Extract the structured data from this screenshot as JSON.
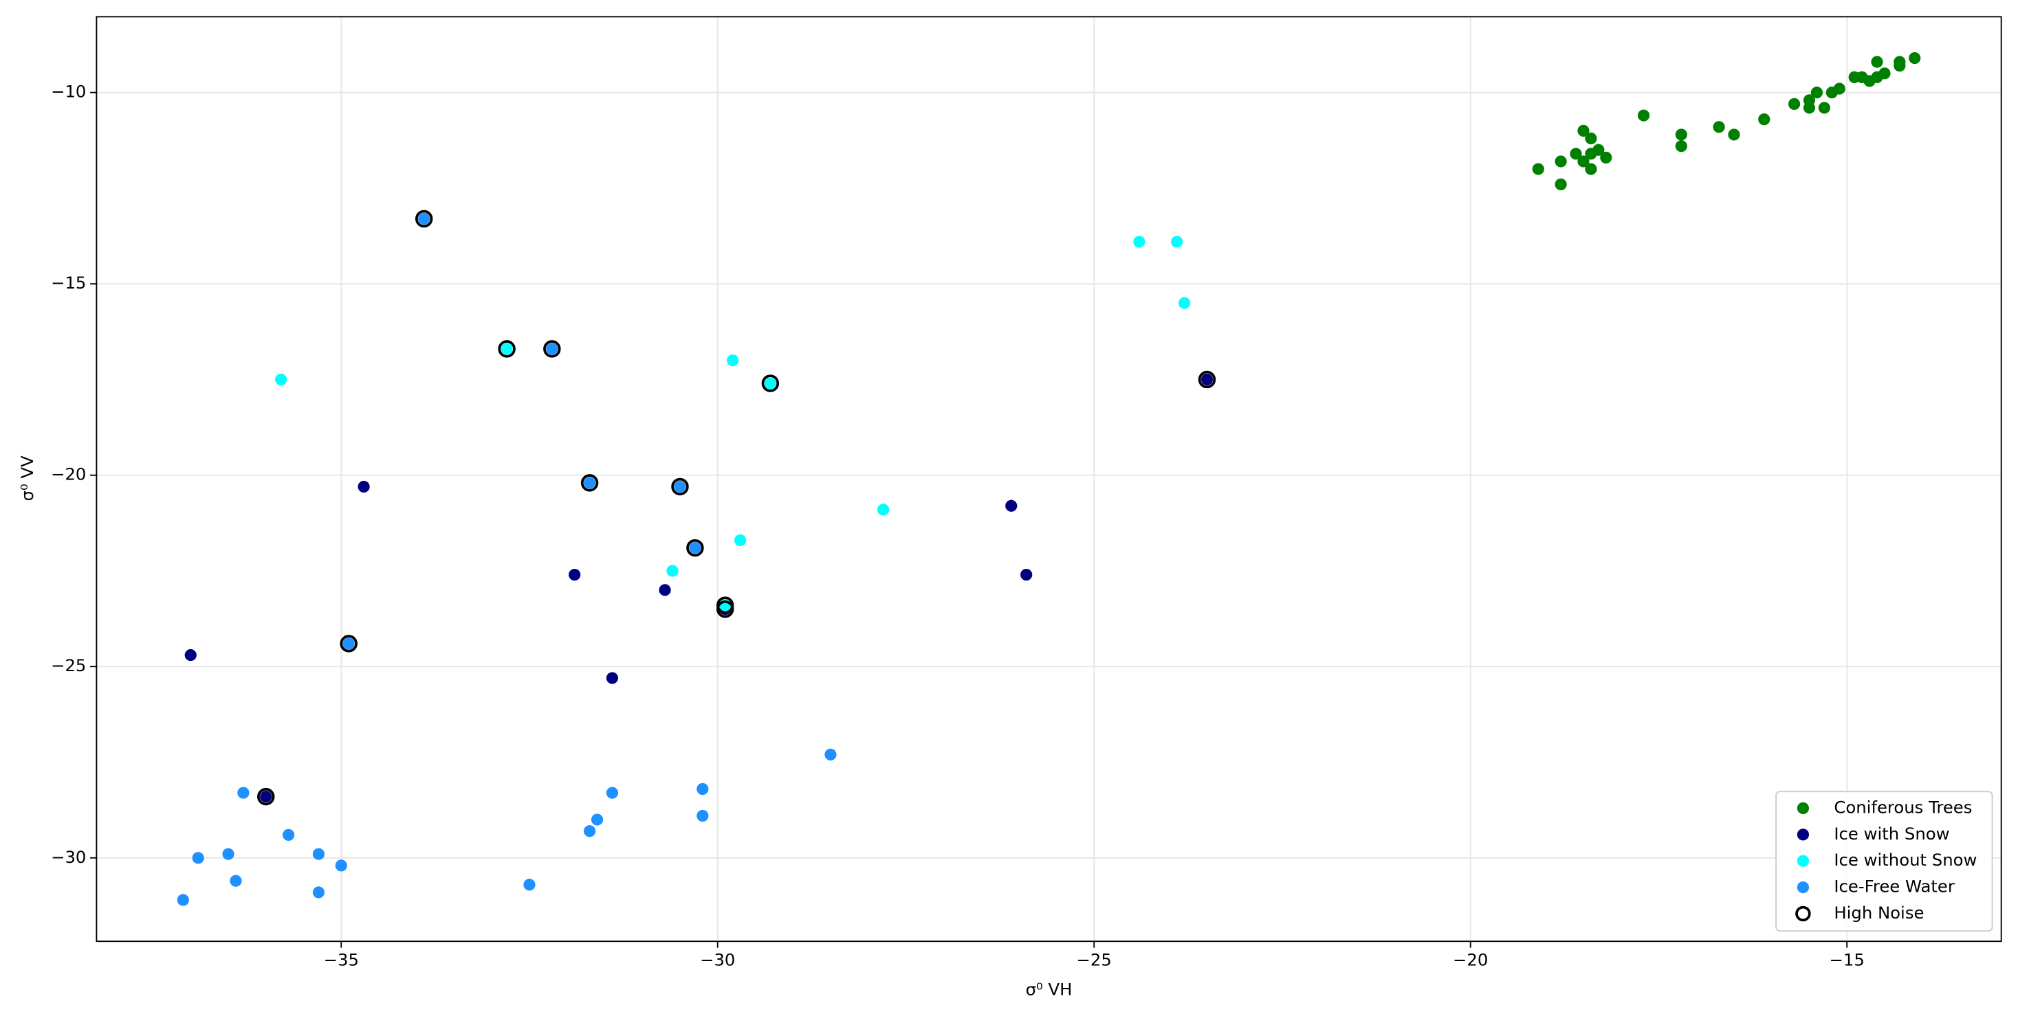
{
  "chart_data": {
    "type": "scatter",
    "x_label": "σ⁰ VH",
    "y_label": "σ⁰ VV",
    "xlim": [
      -38.25,
      -12.95
    ],
    "ylim": [
      -32.18,
      -8.02
    ],
    "xticks": [
      {
        "value": -35,
        "label": "−35"
      },
      {
        "value": -30,
        "label": "−30"
      },
      {
        "value": -25,
        "label": "−25"
      },
      {
        "value": -20,
        "label": "−20"
      },
      {
        "value": -15,
        "label": "−15"
      }
    ],
    "yticks": [
      {
        "value": -10,
        "label": "−10"
      },
      {
        "value": -15,
        "label": "−15"
      },
      {
        "value": -20,
        "label": "−20"
      },
      {
        "value": -25,
        "label": "−25"
      },
      {
        "value": -30,
        "label": "−30"
      }
    ],
    "grid": true,
    "legend": "lower right",
    "series": [
      {
        "name": "Coniferous Trees",
        "color": "#008000",
        "marker": "filled",
        "x": [
          -19.1,
          -18.8,
          -18.8,
          -18.6,
          -18.5,
          -18.5,
          -18.4,
          -18.4,
          -18.4,
          -18.3,
          -18.2,
          -17.7,
          -17.2,
          -17.2,
          -16.7,
          -16.5,
          -16.1,
          -15.7,
          -15.5,
          -15.5,
          -15.4,
          -15.3,
          -15.2,
          -15.1,
          -14.9,
          -14.8,
          -14.7,
          -14.6,
          -14.5,
          -14.6,
          -14.3,
          -14.3,
          -14.1
        ],
        "y": [
          -12.0,
          -11.8,
          -12.4,
          -11.6,
          -11.0,
          -11.8,
          -11.2,
          -12.0,
          -11.6,
          -11.5,
          -11.7,
          -10.6,
          -11.1,
          -11.4,
          -10.9,
          -11.1,
          -10.7,
          -10.3,
          -10.2,
          -10.4,
          -10.0,
          -10.4,
          -10.0,
          -9.9,
          -9.6,
          -9.6,
          -9.7,
          -9.6,
          -9.5,
          -9.2,
          -9.3,
          -9.2,
          -9.1
        ]
      },
      {
        "name": "Ice with Snow",
        "color": "#000080",
        "marker": "filled",
        "x": [
          -37.0,
          -36.0,
          -34.7,
          -31.9,
          -31.4,
          -30.7,
          -26.1,
          -25.9,
          -23.5,
          -29.9
        ],
        "y": [
          -24.7,
          -28.4,
          -20.3,
          -22.6,
          -25.3,
          -23.0,
          -20.8,
          -22.6,
          -17.5,
          -23.5
        ]
      },
      {
        "name": "Ice without Snow",
        "color": "#00ffff",
        "marker": "filled",
        "x": [
          -35.8,
          -32.8,
          -29.8,
          -29.3,
          -30.6,
          -29.7,
          -27.8,
          -24.4,
          -23.9,
          -23.8,
          -29.9
        ],
        "y": [
          -17.5,
          -16.7,
          -17.0,
          -17.6,
          -22.5,
          -21.7,
          -20.9,
          -13.9,
          -13.9,
          -15.5,
          -23.4
        ]
      },
      {
        "name": "Ice-Free Water",
        "color": "#1e90ff",
        "marker": "filled",
        "x": [
          -33.9,
          -32.2,
          -31.7,
          -30.5,
          -30.3,
          -34.9,
          -37.1,
          -36.9,
          -36.5,
          -36.4,
          -36.3,
          -35.7,
          -35.3,
          -35.3,
          -35.0,
          -32.5,
          -31.7,
          -31.6,
          -31.4,
          -30.2,
          -30.2,
          -28.5
        ],
        "y": [
          -13.3,
          -16.7,
          -20.2,
          -20.3,
          -21.9,
          -24.4,
          -31.1,
          -30.0,
          -29.9,
          -30.6,
          -28.3,
          -29.4,
          -29.9,
          -30.9,
          -30.2,
          -30.7,
          -29.3,
          -29.0,
          -28.3,
          -28.9,
          -28.2,
          -27.3
        ]
      },
      {
        "name": "High Noise",
        "color": "#000000",
        "marker": "hollow",
        "x": [
          -36.0,
          -23.5,
          -29.9,
          -32.8,
          -29.3,
          -29.9,
          -33.9,
          -32.2,
          -31.7,
          -30.5,
          -30.3,
          -34.9
        ],
        "y": [
          -28.4,
          -17.5,
          -23.5,
          -16.7,
          -17.6,
          -23.4,
          -13.3,
          -16.7,
          -20.2,
          -20.3,
          -21.9,
          -24.4
        ]
      }
    ]
  }
}
